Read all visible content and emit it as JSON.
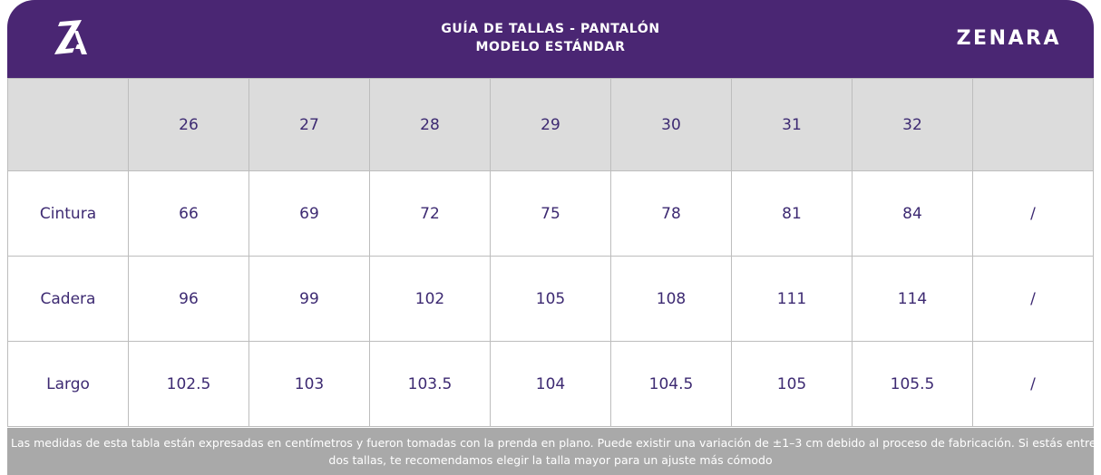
{
  "header": {
    "logo_text": "ZA",
    "title_line1": "GUÍA DE TALLAS - PANTALÓN",
    "title_line2": "MODELO ESTÁNDAR",
    "brand": "ZENARA",
    "background_color": "#4a2673"
  },
  "table": {
    "corner_label": "",
    "sizes": [
      "26",
      "27",
      "28",
      "29",
      "30",
      "31",
      "32",
      ""
    ],
    "rows": [
      {
        "label": "Cintura",
        "values": [
          "66",
          "69",
          "72",
          "75",
          "78",
          "81",
          "84",
          "/"
        ]
      },
      {
        "label": "Cadera",
        "values": [
          "96",
          "99",
          "102",
          "105",
          "108",
          "111",
          "114",
          "/"
        ]
      },
      {
        "label": "Largo",
        "values": [
          "102.5",
          "103",
          "103.5",
          "104",
          "104.5",
          "105",
          "105.5",
          "/"
        ]
      }
    ]
  },
  "footnote": {
    "line1": "Las medidas de esta tabla están expresadas en centímetros y fueron tomadas con la prenda en plano. Puede existir una variación de ±1–3 cm debido al proceso de fabricación. Si estás entre",
    "line2": "dos tallas, te recomendamos elegir la talla mayor para un ajuste más cómodo"
  }
}
